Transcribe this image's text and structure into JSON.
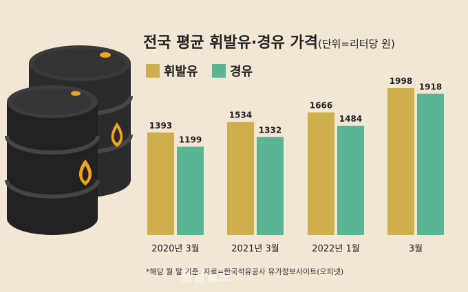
{
  "title": "전국 평균 휘발유·경유 가격",
  "unit_note": "(단위=리터당 원)",
  "footnote": "*해당 월 말 기준. 자료=한국석유공사 유가정보사이트(오피넷)",
  "watermark": "충남일보",
  "colors": {
    "background": "#f2e6d4",
    "gasoline": "#cfae4e",
    "diesel": "#5bb592",
    "barrel": "#2e2e2e",
    "barrel_drop": "#f0a421"
  },
  "chart_data": {
    "type": "bar",
    "title": "전국 평균 휘발유·경유 가격",
    "unit": "(단위=리터당 원)",
    "categories": [
      "2020년 3월",
      "2021년 3월",
      "2022년 1월",
      "3월"
    ],
    "series": [
      {
        "name": "휘발유",
        "color": "#cfae4e",
        "values": [
          1393,
          1534,
          1666,
          1998
        ]
      },
      {
        "name": "경유",
        "color": "#5bb592",
        "values": [
          1199,
          1332,
          1484,
          1918
        ]
      }
    ],
    "ylim": [
      0,
      2100
    ],
    "grid": false,
    "legend": "top-left"
  }
}
